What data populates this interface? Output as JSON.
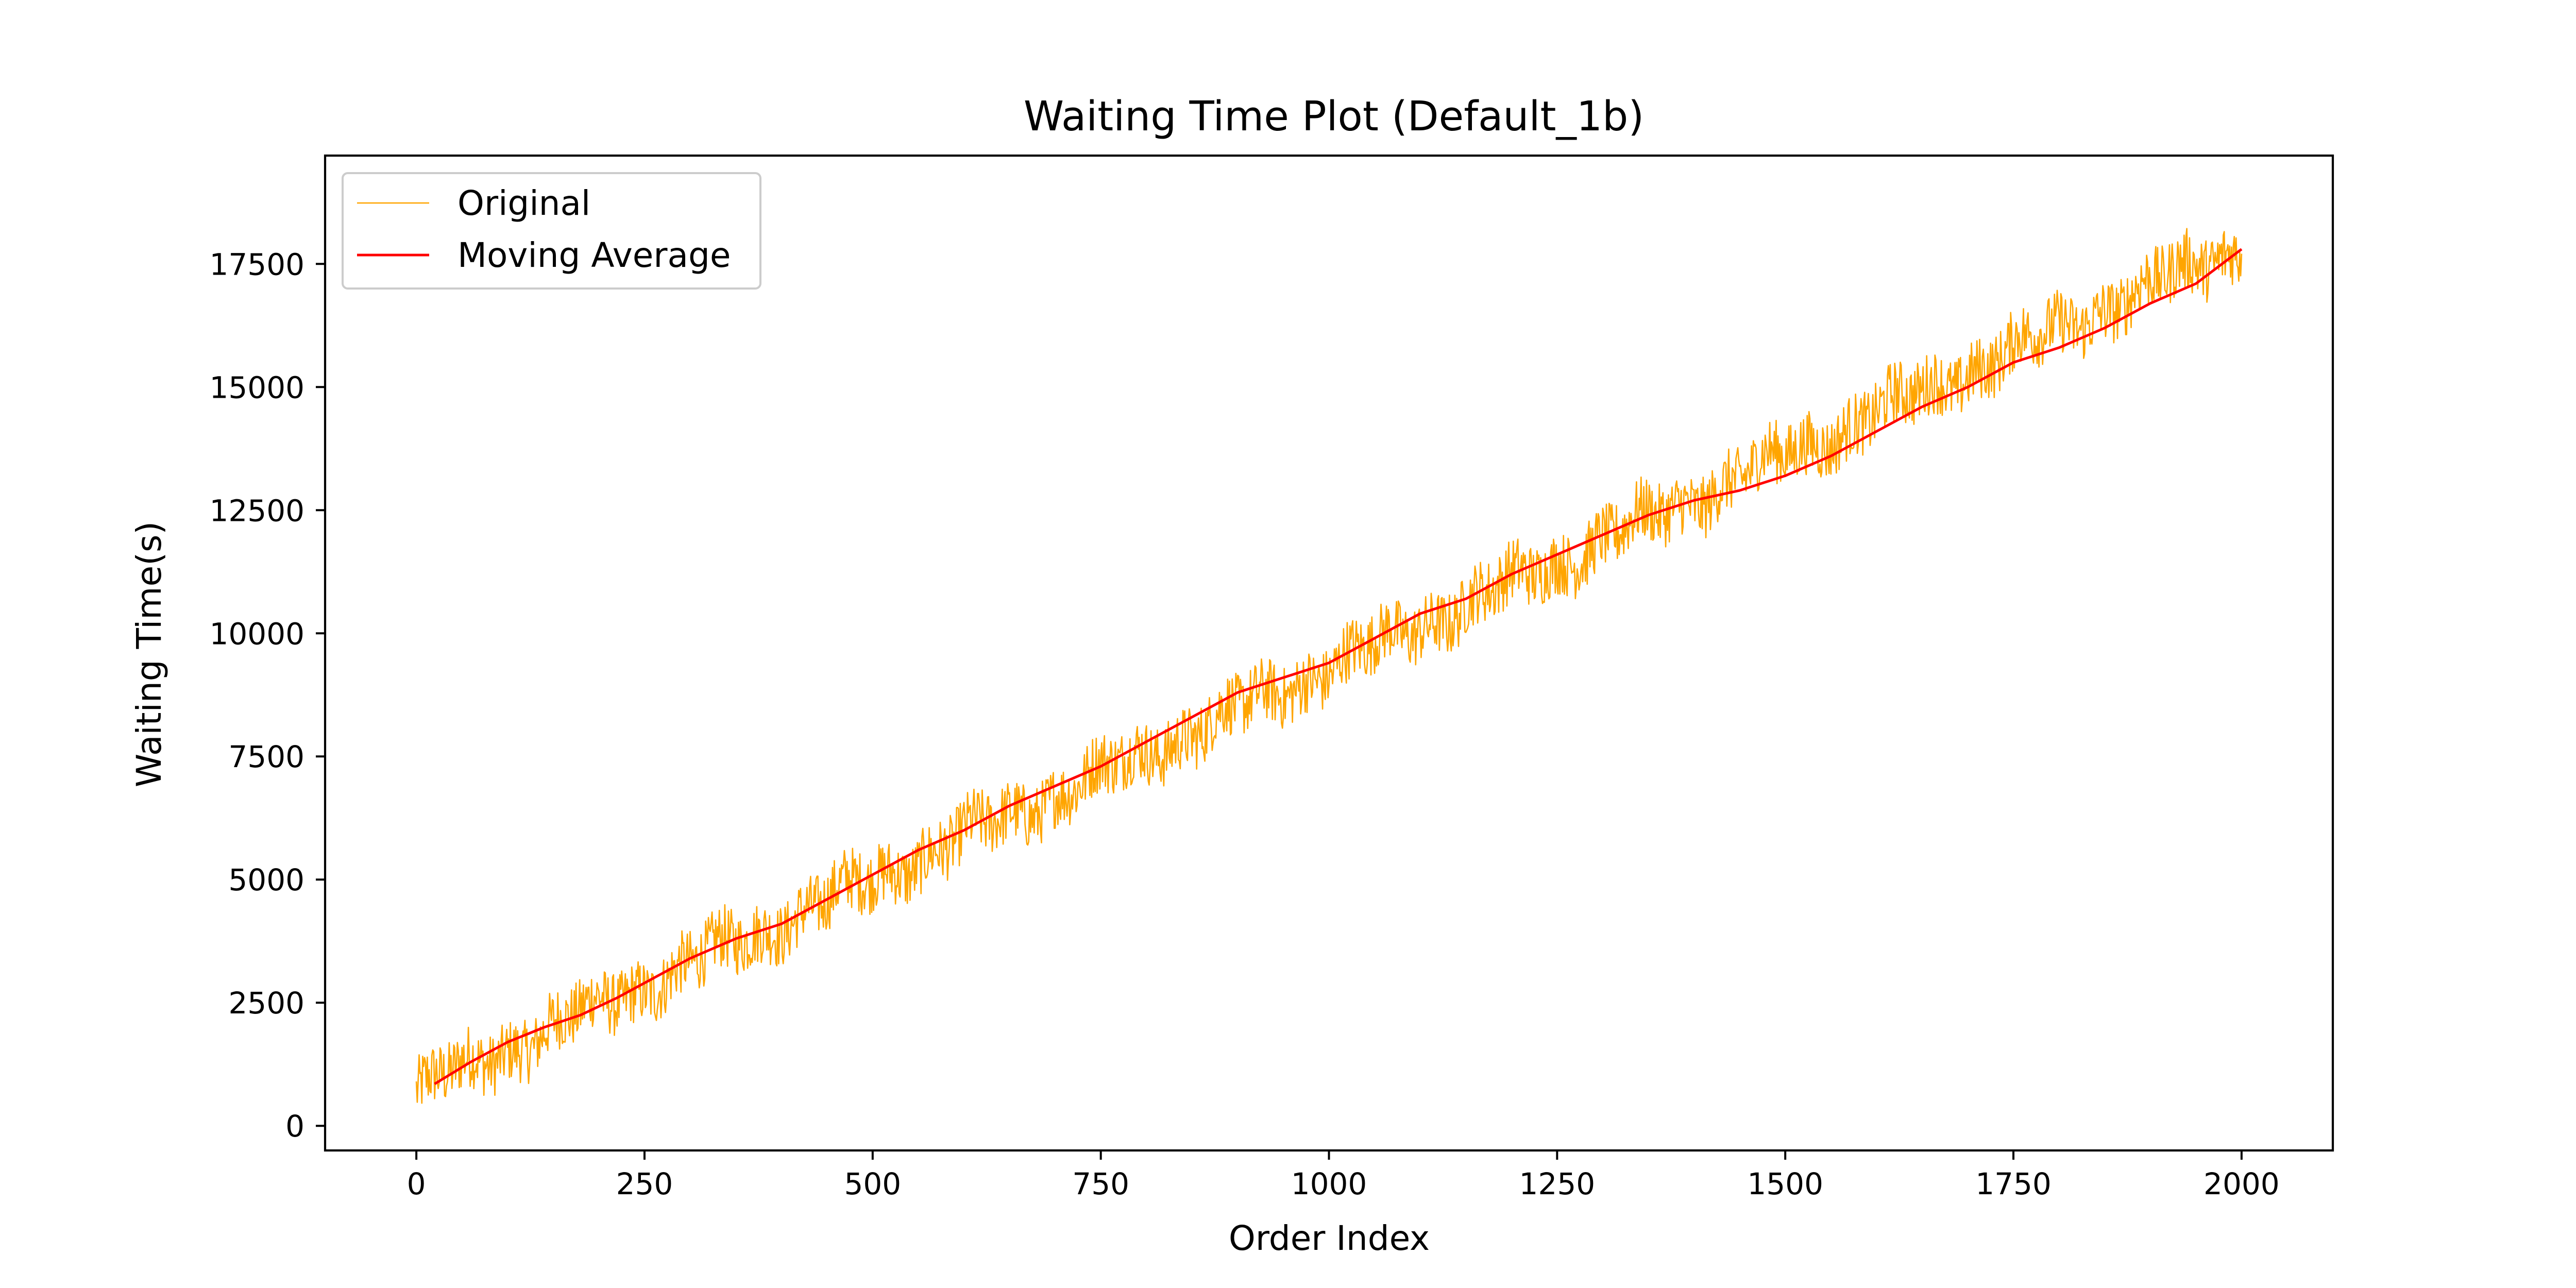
{
  "chart_data": {
    "type": "line",
    "title": "Waiting Time Plot (Default_1b)",
    "xlabel": "Order Index",
    "ylabel": "Waiting Time(s)",
    "xlim": [
      -100,
      2100
    ],
    "ylim": [
      -500,
      19700
    ],
    "x_ticks": [
      0,
      250,
      500,
      750,
      1000,
      1250,
      1500,
      1750,
      2000
    ],
    "y_ticks": [
      0,
      2500,
      5000,
      7500,
      10000,
      12500,
      15000,
      17500
    ],
    "x_tick_labels": [
      "0",
      "250",
      "500",
      "750",
      "1000",
      "1250",
      "1500",
      "1750",
      "2000"
    ],
    "y_tick_labels": [
      "0",
      "2500",
      "5000",
      "7500",
      "10000",
      "12500",
      "15000",
      "17500"
    ],
    "grid": false,
    "legend": {
      "position": "top-left"
    },
    "series": [
      {
        "name": "Original",
        "color": "#ffa500",
        "x_start": 0,
        "x_end": 2000,
        "start_value": 700,
        "end_value": 17900,
        "noise_amplitude": 650
      },
      {
        "name": "Moving Average",
        "color": "#ff0000",
        "x": [
          20,
          60,
          100,
          140,
          180,
          220,
          260,
          300,
          350,
          400,
          450,
          500,
          550,
          600,
          650,
          700,
          750,
          800,
          850,
          900,
          950,
          1000,
          1050,
          1100,
          1150,
          1200,
          1250,
          1300,
          1350,
          1400,
          1450,
          1500,
          1550,
          1600,
          1650,
          1700,
          1750,
          1800,
          1850,
          1900,
          1950,
          2000
        ],
        "values": [
          850,
          1300,
          1700,
          2000,
          2250,
          2600,
          3000,
          3400,
          3800,
          4100,
          4600,
          5100,
          5600,
          6000,
          6500,
          6900,
          7300,
          7800,
          8300,
          8800,
          9100,
          9400,
          9900,
          10400,
          10700,
          11200,
          11600,
          12000,
          12400,
          12700,
          12900,
          13200,
          13600,
          14100,
          14600,
          15000,
          15500,
          15800,
          16200,
          16700,
          17100,
          17800
        ]
      }
    ]
  }
}
